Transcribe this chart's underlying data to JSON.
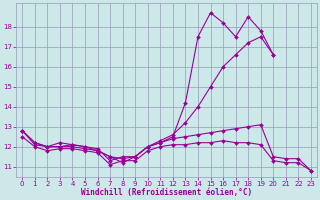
{
  "background_color": "#cce8e8",
  "grid_color": "#9999bb",
  "line_color": "#990099",
  "xlabel": "Windchill (Refroidissement éolien,°C)",
  "xlabel_color": "#990099",
  "tick_color": "#990099",
  "ylim": [
    10.5,
    19.2
  ],
  "xlim": [
    -0.5,
    23.5
  ],
  "yticks": [
    11,
    12,
    13,
    14,
    15,
    16,
    17,
    18
  ],
  "xticks": [
    0,
    1,
    2,
    3,
    4,
    5,
    6,
    7,
    8,
    9,
    10,
    11,
    12,
    13,
    14,
    15,
    16,
    17,
    18,
    19,
    20,
    21,
    22,
    23
  ],
  "series": [
    {
      "x": [
        0,
        1,
        2,
        3,
        4,
        5,
        6,
        7,
        8,
        9,
        10,
        11,
        12,
        13,
        14,
        15,
        16,
        17,
        18,
        19,
        20
      ],
      "y": [
        12.8,
        12.2,
        12.0,
        12.2,
        12.1,
        12.0,
        11.8,
        11.5,
        11.2,
        11.5,
        12.0,
        12.2,
        12.5,
        14.2,
        17.5,
        18.7,
        18.2,
        17.5,
        18.5,
        17.8,
        16.6
      ]
    },
    {
      "x": [
        0,
        1,
        2,
        3,
        4,
        5,
        6,
        7,
        8,
        9,
        10,
        11,
        12,
        13,
        14,
        15,
        16,
        17,
        18,
        19,
        20
      ],
      "y": [
        12.8,
        12.1,
        12.0,
        12.0,
        12.0,
        11.9,
        11.8,
        11.5,
        11.4,
        11.5,
        12.0,
        12.3,
        12.6,
        13.2,
        14.0,
        15.0,
        16.0,
        16.6,
        17.2,
        17.5,
        16.6
      ]
    },
    {
      "x": [
        0,
        1,
        2,
        3,
        4,
        5,
        6,
        7,
        8,
        9,
        10,
        11,
        12,
        13,
        14,
        15,
        16,
        17,
        18,
        19,
        20,
        21,
        22,
        23
      ],
      "y": [
        12.8,
        12.2,
        12.0,
        12.0,
        12.1,
        12.0,
        11.9,
        11.3,
        11.5,
        11.5,
        12.0,
        12.2,
        12.4,
        12.5,
        12.6,
        12.7,
        12.8,
        12.9,
        13.0,
        13.1,
        11.5,
        11.4,
        11.4,
        10.8
      ]
    },
    {
      "x": [
        0,
        1,
        2,
        3,
        4,
        5,
        6,
        7,
        8,
        9,
        10,
        11,
        12,
        13,
        14,
        15,
        16,
        17,
        18,
        19,
        20,
        21,
        22,
        23
      ],
      "y": [
        12.5,
        12.0,
        11.8,
        11.9,
        11.9,
        11.8,
        11.7,
        11.1,
        11.3,
        11.3,
        11.8,
        12.0,
        12.1,
        12.1,
        12.2,
        12.2,
        12.3,
        12.2,
        12.2,
        12.1,
        11.3,
        11.2,
        11.2,
        10.8
      ]
    }
  ]
}
